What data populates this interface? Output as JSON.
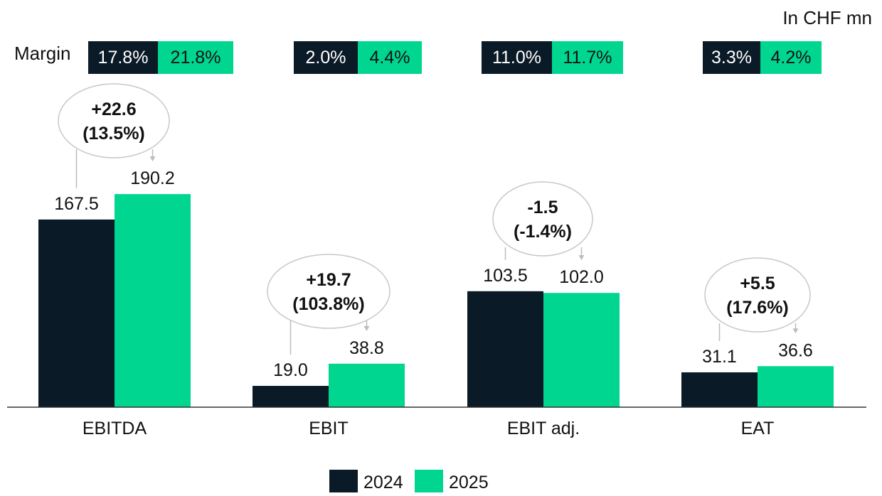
{
  "unit_label": "In CHF mn",
  "margin_label": "Margin",
  "colors": {
    "dark": "#0b1a27",
    "green": "#00d68f",
    "axis": "#333333",
    "connector": "#bdbdbd"
  },
  "chart_data": {
    "type": "bar",
    "categories": [
      "EBITDA",
      "EBIT",
      "EBIT adj.",
      "EAT"
    ],
    "series": [
      {
        "name": "2024",
        "values": [
          167.5,
          19.0,
          103.5,
          31.1
        ],
        "labels": [
          "167.5",
          "19.0",
          "103.5",
          "31.1"
        ]
      },
      {
        "name": "2025",
        "values": [
          190.2,
          38.8,
          102.0,
          36.6
        ],
        "labels": [
          "190.2",
          "38.8",
          "102.0",
          "36.6"
        ]
      }
    ],
    "margins": [
      {
        "y2024": "17.8%",
        "y2025": "21.8%"
      },
      {
        "y2024": "2.0%",
        "y2025": "4.4%"
      },
      {
        "y2024": "11.0%",
        "y2025": "11.7%"
      },
      {
        "y2024": "3.3%",
        "y2025": "4.2%"
      }
    ],
    "deltas": [
      {
        "abs": "+22.6",
        "pct": "(13.5%)"
      },
      {
        "abs": "+19.7",
        "pct": "(103.8%)"
      },
      {
        "abs": "-1.5",
        "pct": "(-1.4%)"
      },
      {
        "abs": "+5.5",
        "pct": "(17.6%)"
      }
    ],
    "ylim": [
      0,
      200
    ],
    "legend": {
      "position": "bottom-center",
      "entries": [
        "2024",
        "2025"
      ]
    },
    "grid": false
  }
}
